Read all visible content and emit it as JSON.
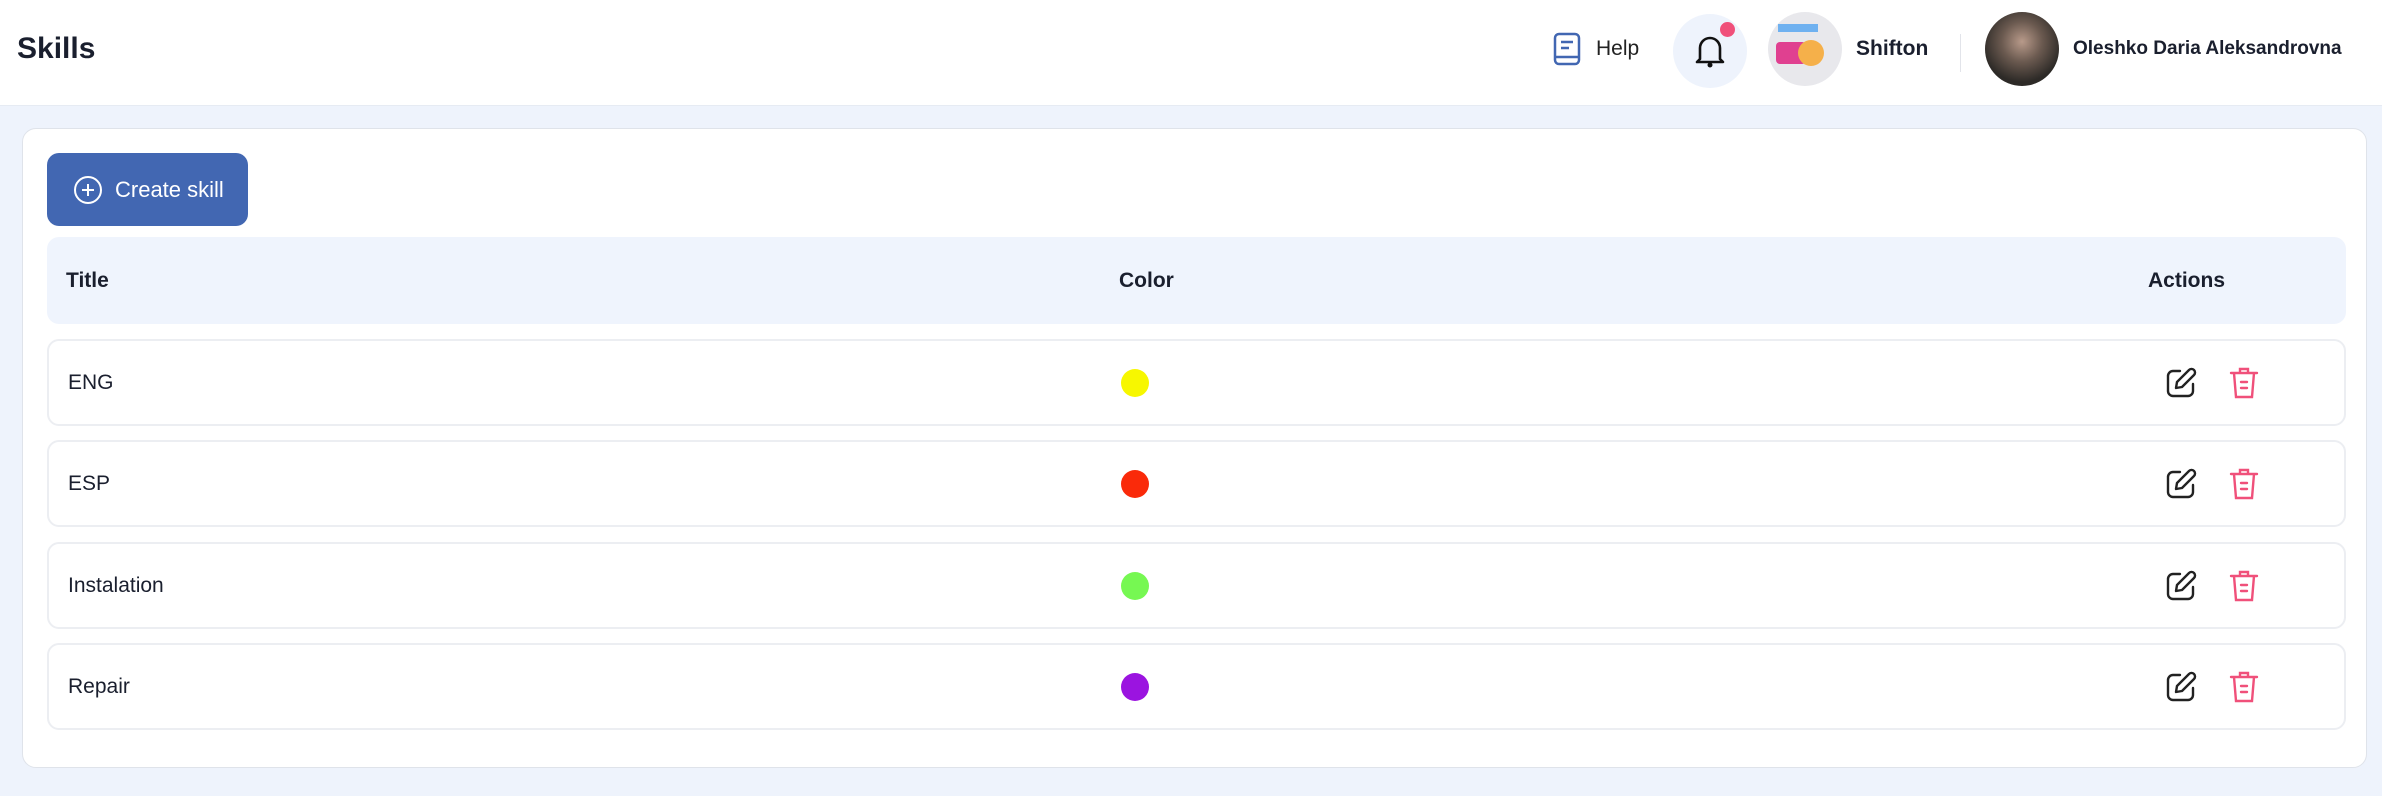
{
  "header": {
    "title": "Skills",
    "help_label": "Help",
    "company_name": "Shifton",
    "user_name": "Oleshko Daria Aleksandrovna",
    "notification_dot_color": "#f0507a"
  },
  "toolbar": {
    "create_label": "Create skill",
    "accent": "#4267b2"
  },
  "table": {
    "columns": [
      "Title",
      "Color",
      "Actions"
    ],
    "rows": [
      {
        "title": "ENG",
        "color": "#f7f700"
      },
      {
        "title": "ESP",
        "color": "#fa2a0a"
      },
      {
        "title": "Instalation",
        "color": "#76f852"
      },
      {
        "title": "Repair",
        "color": "#9b14e0"
      }
    ]
  },
  "icons": {
    "edit": "edit-icon",
    "delete": "trash-icon",
    "delete_color": "#f0507a"
  }
}
